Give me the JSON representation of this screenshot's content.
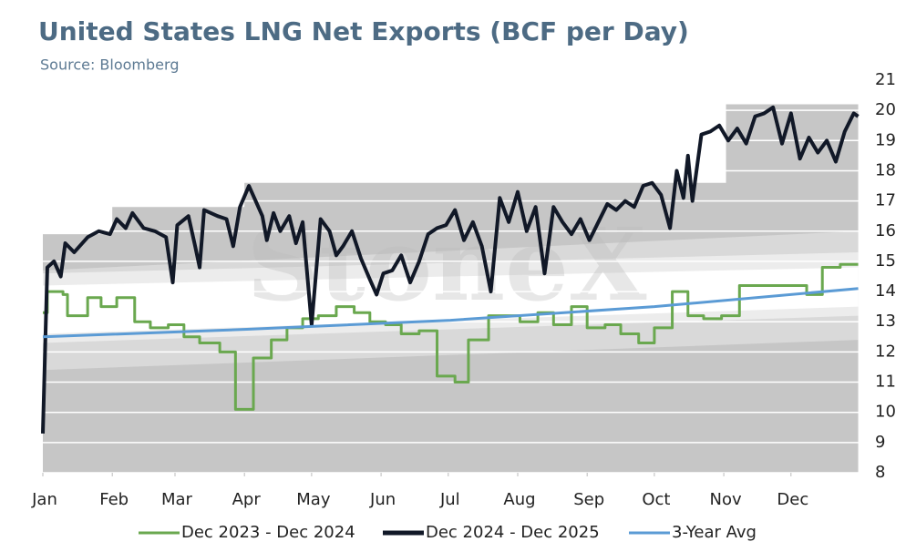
{
  "chart_data": {
    "type": "line",
    "title": "United States LNG Net Exports (BCF per Day)",
    "subtitle": "Source: Bloomberg",
    "watermark": "StoneX",
    "xlim": [
      0,
      365
    ],
    "xticks": [
      {
        "value": 0,
        "label": "Jan"
      },
      {
        "value": 31,
        "label": "Feb"
      },
      {
        "value": 59,
        "label": "Mar"
      },
      {
        "value": 90,
        "label": "Apr"
      },
      {
        "value": 120,
        "label": "May"
      },
      {
        "value": 151,
        "label": "Jun"
      },
      {
        "value": 181,
        "label": "Jul"
      },
      {
        "value": 212,
        "label": "Aug"
      },
      {
        "value": 243,
        "label": "Sep"
      },
      {
        "value": 273,
        "label": "Oct"
      },
      {
        "value": 304,
        "label": "Nov"
      },
      {
        "value": 334,
        "label": "Dec"
      }
    ],
    "ylim": [
      8,
      21
    ],
    "yticks": [
      8,
      9,
      10,
      11,
      12,
      13,
      14,
      15,
      16,
      17,
      18,
      19,
      20,
      21
    ],
    "grid": true,
    "legend": "bottom",
    "bands": [
      {
        "color": "#c6c6c6",
        "x": [
          0,
          31,
          31,
          90,
          90,
          305,
          305,
          364
        ],
        "lower": [
          8,
          8,
          8,
          8,
          8,
          8,
          8,
          8
        ],
        "upper": [
          15.9,
          15.9,
          16.8,
          16.8,
          17.6,
          17.6,
          20.2,
          20.2
        ]
      },
      {
        "color": "#d9d9d9",
        "x": [
          0,
          364
        ],
        "lower": [
          11.4,
          12.4
        ],
        "upper": [
          14.7,
          16
        ]
      },
      {
        "color": "#ececec",
        "x": [
          0,
          364
        ],
        "lower": [
          12.3,
          13.2
        ],
        "upper": [
          14.6,
          15.3
        ]
      },
      {
        "color": "#ffffff",
        "x": [
          0,
          364
        ],
        "lower": [
          12.6,
          13.5
        ],
        "upper": [
          14.2,
          14.8
        ]
      }
    ],
    "series": [
      {
        "name": "Dec 2023 - Dec 2024",
        "color": "#6aa84f",
        "step": true,
        "x": [
          0,
          2,
          9,
          11,
          20,
          26,
          33,
          41,
          48,
          56,
          63,
          70,
          79,
          86,
          94,
          102,
          109,
          116,
          123,
          131,
          139,
          146,
          153,
          160,
          168,
          176,
          184,
          190,
          199,
          213,
          221,
          228,
          236,
          243,
          251,
          258,
          266,
          273,
          281,
          288,
          295,
          303,
          311,
          326,
          341,
          348,
          356,
          364
        ],
        "values": [
          13.3,
          14,
          13.9,
          13.2,
          13.8,
          13.5,
          13.8,
          13,
          12.8,
          12.9,
          12.5,
          12.3,
          12,
          10.1,
          11.8,
          12.4,
          12.8,
          13.1,
          13.2,
          13.5,
          13.3,
          13,
          12.9,
          12.6,
          12.7,
          11.2,
          11,
          12.4,
          13.2,
          13,
          13.3,
          12.9,
          13.5,
          12.8,
          12.9,
          12.6,
          12.3,
          12.8,
          14,
          13.2,
          13.1,
          13.2,
          14.2,
          14.2,
          13.9,
          14.8,
          14.9,
          14.9
        ]
      },
      {
        "name": "Dec 2024 - Dec 2025",
        "color": "#111827",
        "step": false,
        "x": [
          0,
          2,
          5,
          8,
          10,
          14,
          20,
          25,
          30,
          33,
          37,
          40,
          45,
          50,
          55,
          58,
          60,
          65,
          68,
          70,
          72,
          78,
          82,
          85,
          88,
          92,
          95,
          98,
          100,
          103,
          106,
          110,
          113,
          116,
          120,
          124,
          128,
          131,
          134,
          138,
          142,
          146,
          149,
          152,
          156,
          160,
          164,
          168,
          172,
          176,
          180,
          184,
          188,
          192,
          196,
          200,
          204,
          208,
          212,
          216,
          220,
          224,
          228,
          232,
          236,
          240,
          244,
          248,
          252,
          256,
          260,
          264,
          268,
          272,
          276,
          280,
          283,
          286,
          288,
          290,
          294,
          298,
          302,
          306,
          310,
          314,
          318,
          322,
          326,
          330,
          334,
          338,
          342,
          346,
          350,
          354,
          358,
          362,
          364
        ],
        "values": [
          9.3,
          14.8,
          15,
          14.5,
          15.6,
          15.3,
          15.8,
          16,
          15.9,
          16.4,
          16.1,
          16.6,
          16.1,
          16,
          15.8,
          14.3,
          16.2,
          16.5,
          15.5,
          14.8,
          16.7,
          16.5,
          16.4,
          15.5,
          16.8,
          17.5,
          17,
          16.5,
          15.7,
          16.6,
          16,
          16.5,
          15.6,
          16.3,
          12.9,
          16.4,
          16,
          15.2,
          15.5,
          16,
          15.1,
          14.4,
          13.9,
          14.6,
          14.7,
          15.2,
          14.3,
          15,
          15.9,
          16.1,
          16.2,
          16.7,
          15.7,
          16.3,
          15.5,
          14,
          17.1,
          16.3,
          17.3,
          16,
          16.8,
          14.6,
          16.8,
          16.3,
          15.9,
          16.4,
          15.7,
          16.3,
          16.9,
          16.7,
          17,
          16.8,
          17.5,
          17.6,
          17.2,
          16.1,
          18,
          17.1,
          18.5,
          17,
          19.2,
          19.3,
          19.5,
          19,
          19.4,
          18.9,
          19.8,
          19.9,
          20.1,
          18.9,
          19.9,
          18.4,
          19.1,
          18.6,
          19,
          18.3,
          19.3,
          19.9,
          19.8
        ]
      },
      {
        "name": "3-Year Avg",
        "color": "#5b9bd5",
        "step": false,
        "x": [
          0,
          91,
          182,
          273,
          364
        ],
        "values": [
          12.5,
          12.75,
          13.05,
          13.5,
          14.1
        ]
      }
    ]
  }
}
